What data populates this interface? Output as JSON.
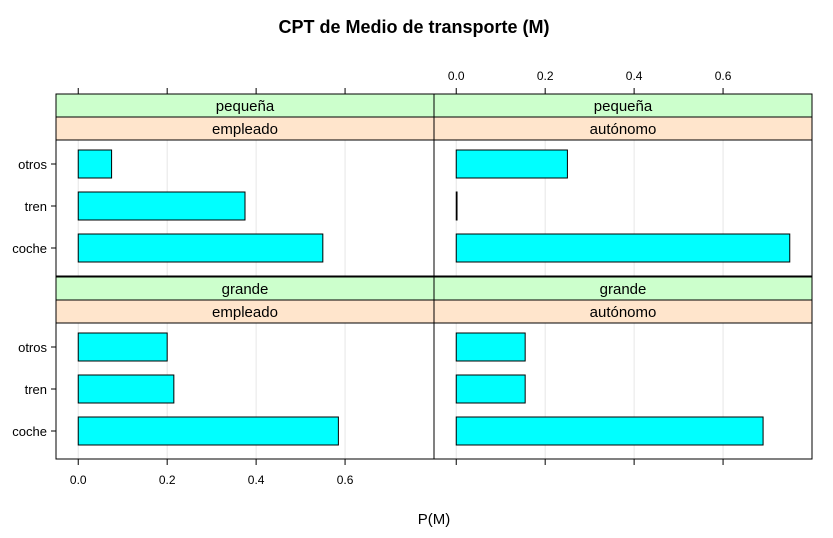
{
  "chart_data": {
    "type": "bar",
    "orientation": "horizontal",
    "title": "CPT de Medio de transporte (M)",
    "xlabel": "P(M)",
    "ylabel": "",
    "xlim": [
      -0.05,
      0.8
    ],
    "x_ticks": [
      0.0,
      0.2,
      0.4,
      0.6
    ],
    "x_tick_labels": [
      "0.0",
      "0.2",
      "0.4",
      "0.6"
    ],
    "grid": true,
    "categories": [
      "otros",
      "tren",
      "coche"
    ],
    "colors": {
      "bar_fill": "#00FFFF",
      "strip_outer": "#CCFFCC",
      "strip_inner": "#FFE5CC",
      "grid": "#E6E6E6"
    },
    "panels": [
      {
        "outer": "pequeña",
        "inner": "empleado",
        "values": [
          0.075,
          0.375,
          0.55
        ]
      },
      {
        "outer": "pequeña",
        "inner": "autónomo",
        "values": [
          0.25,
          0.0,
          0.75
        ]
      },
      {
        "outer": "grande",
        "inner": "empleado",
        "values": [
          0.2,
          0.215,
          0.585
        ]
      },
      {
        "outer": "grande",
        "inner": "autónomo",
        "values": [
          0.155,
          0.155,
          0.69
        ]
      }
    ]
  }
}
